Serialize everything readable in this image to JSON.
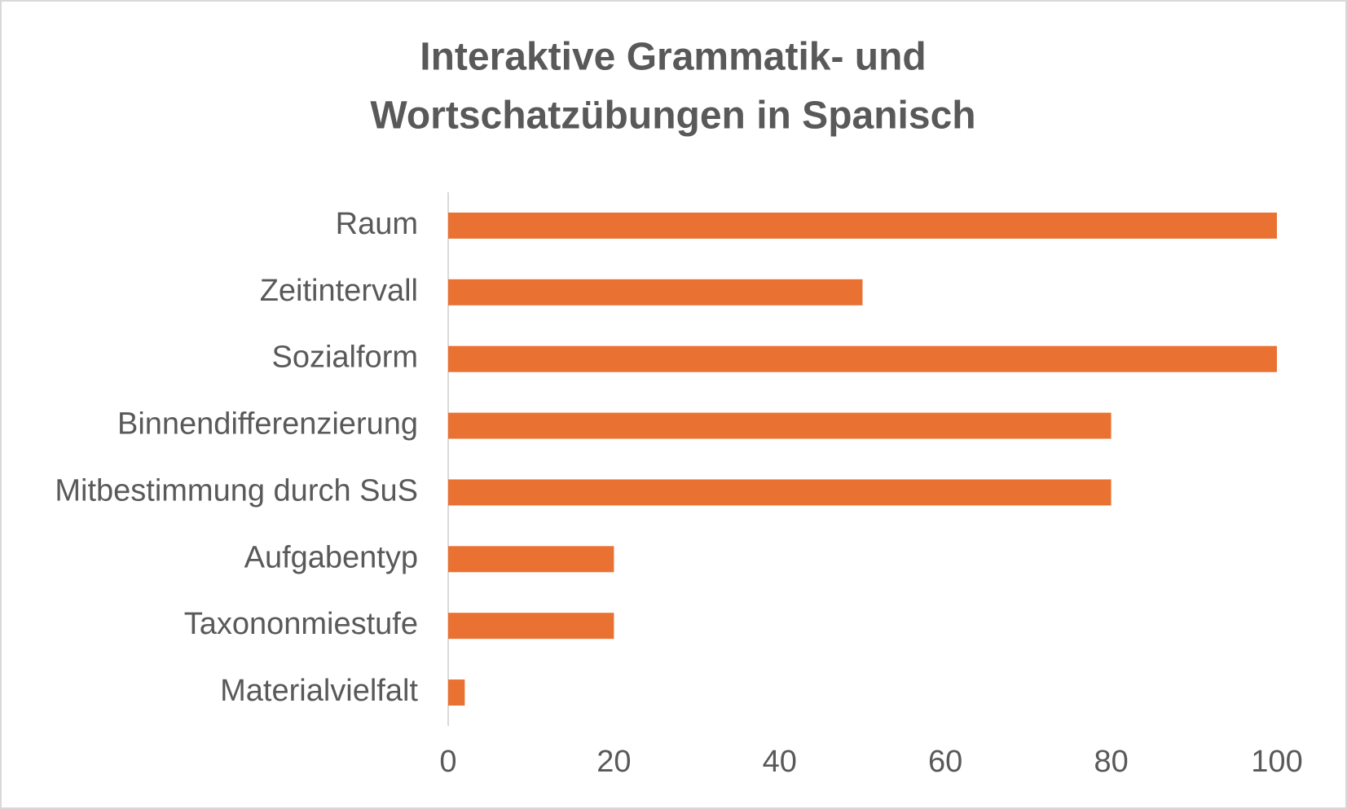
{
  "chart_data": {
    "type": "bar",
    "orientation": "horizontal",
    "title": [
      "Interaktive Grammatik- und",
      "Wortschatzübungen in Spanisch"
    ],
    "categories": [
      "Raum",
      "Zeitintervall",
      "Sozialform",
      "Binnendifferenzierung",
      "Mitbestimmung durch SuS",
      "Aufgabentyp",
      "Taxononmiestufe",
      "Materialvielfalt"
    ],
    "values": [
      100,
      50,
      100,
      80,
      80,
      20,
      20,
      2
    ],
    "color": "#e97132",
    "xlim": [
      0,
      100
    ],
    "xticks": [
      0,
      20,
      40,
      60,
      80,
      100
    ],
    "grid": false
  }
}
